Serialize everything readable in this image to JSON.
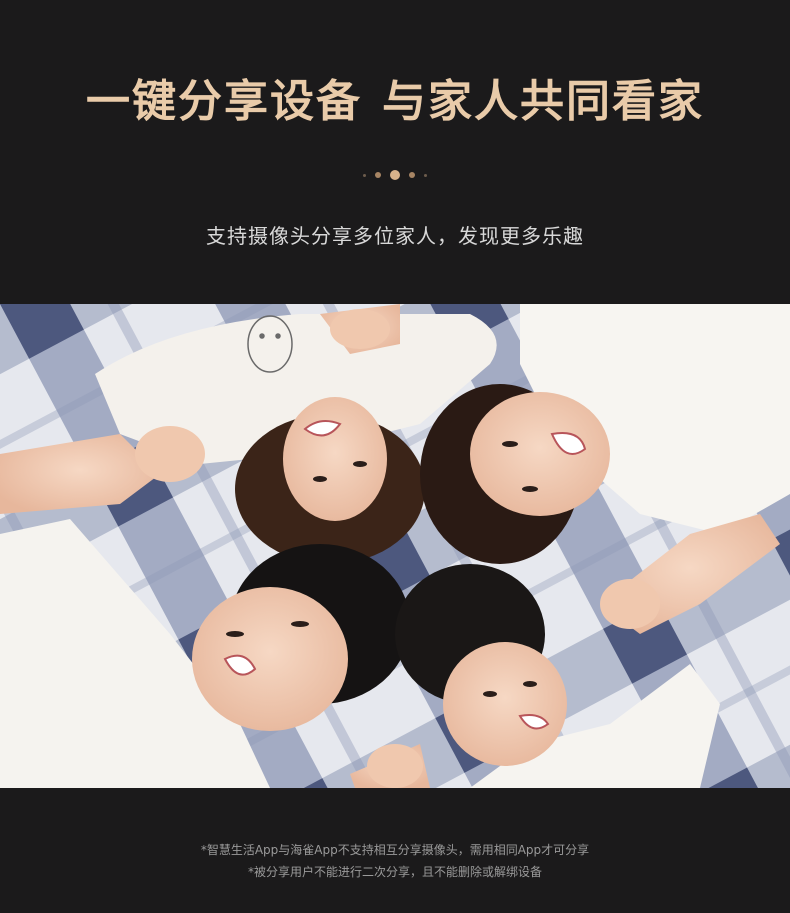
{
  "headline": {
    "part1": "一键分享设备",
    "part2": "与家人共同看家"
  },
  "subtitle": "支持摄像头分享多位家人，发现更多乐趣",
  "pager": {
    "total": 5,
    "active_index": 2
  },
  "photo": {
    "subject": "family-lying-on-blanket"
  },
  "footnotes": [
    "*智慧生活App与海雀App不支持相互分享摄像头，需用相同App才可分享",
    "*被分享用户不能进行二次分享，且不能删除或解绑设备"
  ],
  "colors": {
    "background": "#1b1a1b",
    "headline_gold": "#e9cba9",
    "accent_dot": "#d8b28b",
    "subtitle": "#d8d8d8",
    "footnote": "#9a9a9a"
  }
}
